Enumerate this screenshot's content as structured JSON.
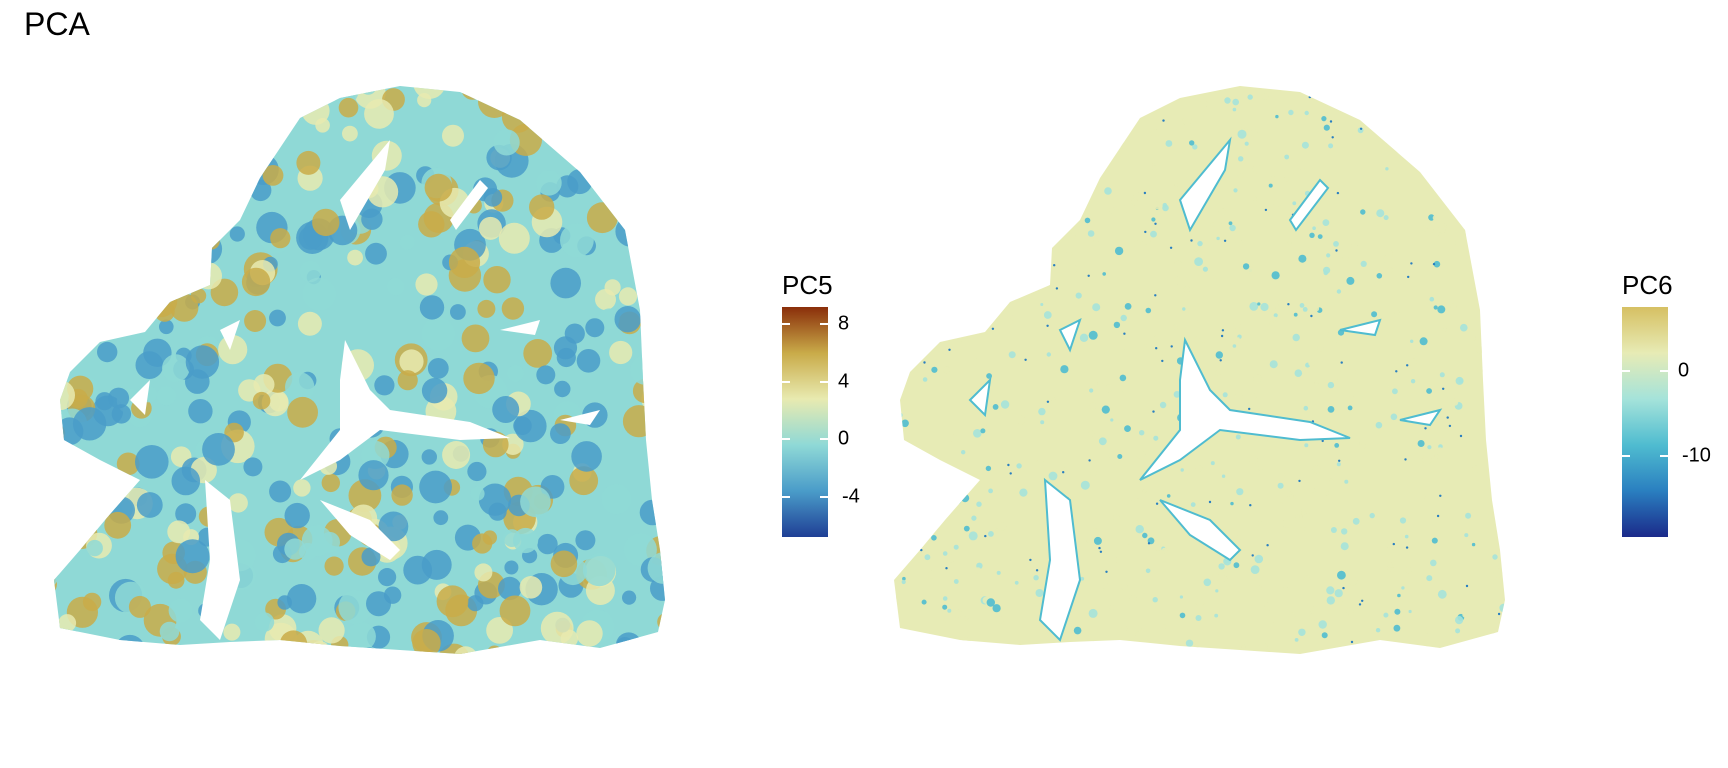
{
  "title": "PCA",
  "chart_data": [
    {
      "type": "heatmap",
      "description_visible": "spatial tissue map colored by principal component score",
      "legend_title": "PC5",
      "legend_ticks": [
        8,
        4,
        0,
        -4
      ],
      "value_range": [
        -6.8,
        9.2
      ],
      "colors": [
        "#1f3f95",
        "#4a9cc9",
        "#8fd9d6",
        "#e8eab0",
        "#c9ab49",
        "#8a2e0a"
      ],
      "dominant_values": {
        "low": -4,
        "high": 4
      }
    },
    {
      "type": "heatmap",
      "description_visible": "spatial tissue map colored by principal component score",
      "legend_title": "PC6",
      "legend_ticks": [
        0,
        -10
      ],
      "value_range": [
        -19.5,
        7.5
      ],
      "colors": [
        "#1b2a8a",
        "#2a7fc0",
        "#4fbcd0",
        "#a5e3da",
        "#e7ebb5",
        "#d6c063"
      ],
      "dominant_values": {
        "low": -2,
        "high": 1
      }
    }
  ]
}
